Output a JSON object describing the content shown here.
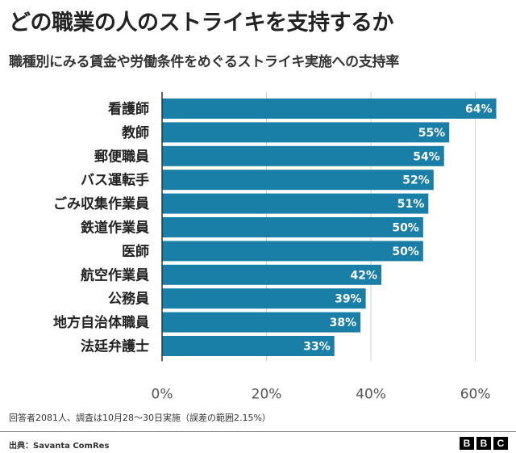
{
  "header": {
    "title": "どの職業の人のストライキを支持するか",
    "subtitle": "職種別にみる賃金や労働条件をめぐるストライキ実施への支持率"
  },
  "chart_data": {
    "type": "bar",
    "orientation": "horizontal",
    "categories": [
      "看護師",
      "教師",
      "郵便職員",
      "バス運転手",
      "ごみ収集作業員",
      "鉄道作業員",
      "医師",
      "航空作業員",
      "公務員",
      "地方自治体職員",
      "法廷弁護士"
    ],
    "values": [
      64,
      55,
      54,
      52,
      51,
      50,
      50,
      42,
      39,
      38,
      33
    ],
    "value_labels": [
      "64%",
      "55%",
      "54%",
      "52%",
      "51%",
      "50%",
      "50%",
      "42%",
      "39%",
      "38%",
      "33%"
    ],
    "xlim": [
      0,
      65
    ],
    "xticks": [
      0,
      20,
      40,
      60
    ],
    "xtick_labels": [
      "0%",
      "20%",
      "40%",
      "60%"
    ],
    "grid": true,
    "bar_color": "#1a7fa6"
  },
  "footer": {
    "note": "回答者2081人、調査は10月28～30日実施（誤差の範囲2.15%）",
    "source": "出典：Savanta ComRes",
    "logo": [
      "B",
      "B",
      "C"
    ]
  }
}
